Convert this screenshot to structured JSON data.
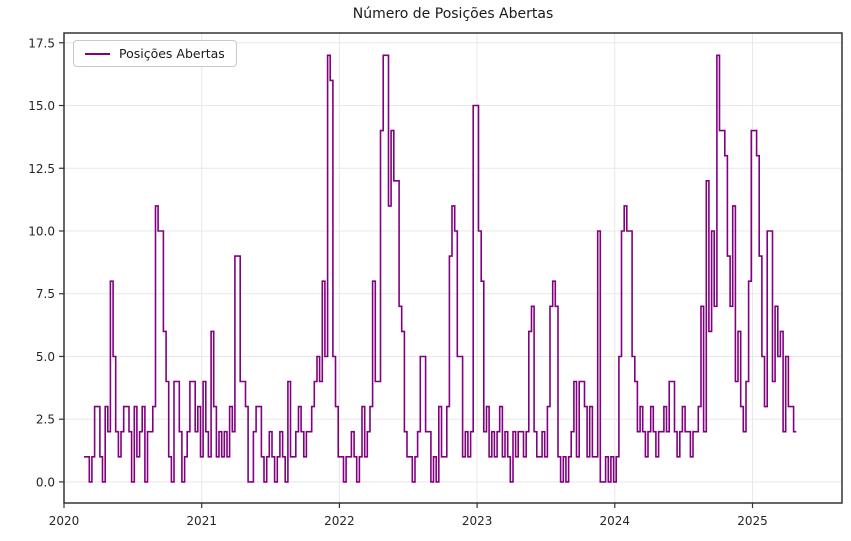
{
  "chart_data": {
    "type": "line",
    "title": "Número de Posições Abertas",
    "xlabel": "",
    "ylabel": "",
    "legend_position": "upper left",
    "grid": true,
    "x_ticks": [
      2020,
      2021,
      2022,
      2023,
      2024,
      2025
    ],
    "y_ticks": [
      "0.0",
      "2.5",
      "5.0",
      "7.5",
      "10.0",
      "12.5",
      "15.0",
      "17.5"
    ],
    "xlim": [
      2020.0,
      2025.65
    ],
    "ylim": [
      -0.84,
      17.89
    ],
    "colors": {
      "line": "#800080",
      "grid": "#e8e8e8",
      "spine": "#333333",
      "text": "#262626",
      "legend_border": "#c9c9c9"
    },
    "series": [
      {
        "name": "Posições Abertas",
        "color": "#800080",
        "draw_style": "steps-post",
        "x_start": 2020.145,
        "dx_years": 0.0192308,
        "values": [
          1,
          1,
          0,
          1,
          3,
          3,
          1,
          0,
          3,
          2,
          8,
          5,
          2,
          1,
          2,
          3,
          3,
          2,
          0,
          3,
          1,
          2,
          3,
          0,
          2,
          2,
          3,
          11,
          10,
          10,
          6,
          4,
          1,
          0,
          4,
          4,
          2,
          0,
          1,
          2,
          4,
          4,
          2,
          3,
          1,
          4,
          2,
          1,
          6,
          3,
          1,
          2,
          1,
          2,
          1,
          3,
          2,
          9,
          9,
          4,
          4,
          3,
          0,
          0,
          2,
          3,
          3,
          1,
          0,
          1,
          2,
          1,
          0,
          1,
          2,
          1,
          0,
          4,
          1,
          1,
          2,
          3,
          2,
          1,
          2,
          2,
          3,
          4,
          5,
          4,
          8,
          5,
          17,
          16,
          5,
          3,
          1,
          1,
          0,
          1,
          1,
          2,
          1,
          0,
          1,
          3,
          1,
          2,
          3,
          8,
          4,
          4,
          14,
          17,
          17,
          11,
          14,
          12,
          12,
          7,
          6,
          2,
          1,
          1,
          0,
          1,
          2,
          5,
          5,
          2,
          2,
          0,
          1,
          0,
          3,
          1,
          1,
          3,
          9,
          11,
          10,
          5,
          5,
          1,
          2,
          1,
          2,
          15,
          15,
          10,
          8,
          2,
          3,
          1,
          2,
          1,
          2,
          3,
          1,
          2,
          1,
          0,
          2,
          1,
          2,
          2,
          1,
          2,
          6,
          7,
          2,
          1,
          1,
          2,
          1,
          3,
          7,
          8,
          7,
          1,
          0,
          1,
          0,
          1,
          2,
          4,
          1,
          4,
          4,
          3,
          1,
          3,
          1,
          1,
          10,
          0,
          0,
          1,
          0,
          1,
          0,
          1,
          5,
          10,
          11,
          10,
          10,
          5,
          4,
          2,
          3,
          2,
          1,
          2,
          3,
          2,
          1,
          2,
          2,
          3,
          2,
          4,
          4,
          2,
          1,
          2,
          3,
          2,
          2,
          1,
          2,
          2,
          3,
          7,
          2,
          12,
          6,
          10,
          7,
          17,
          14,
          14,
          13,
          9,
          7,
          11,
          4,
          6,
          3,
          2,
          4,
          8,
          14,
          14,
          13,
          9,
          5,
          3,
          10,
          10,
          4,
          7,
          5,
          6,
          2,
          5,
          3,
          3,
          2,
          2
        ]
      }
    ]
  }
}
